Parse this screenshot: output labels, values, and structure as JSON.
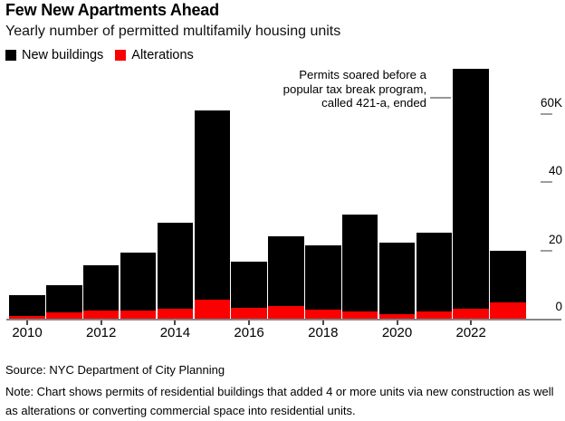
{
  "header": {
    "title": "Few New Apartments Ahead",
    "subtitle": "Yearly number of permitted multifamily housing units"
  },
  "legend": [
    {
      "label": "New buildings",
      "color": "#000000"
    },
    {
      "label": "Alterations",
      "color": "#fa0000"
    }
  ],
  "annotation": {
    "lines": [
      "Permits soared before a",
      "popular tax break program,",
      "called 421-a, ended"
    ]
  },
  "chart_data": {
    "type": "bar",
    "stacked": true,
    "title": "Few New Apartments Ahead",
    "subtitle": "Yearly number of permitted multifamily housing units",
    "categories": [
      2010,
      2011,
      2012,
      2013,
      2014,
      2015,
      2016,
      2017,
      2018,
      2019,
      2020,
      2021,
      2022,
      2023
    ],
    "series": [
      {
        "name": "New buildings",
        "color": "#000000",
        "values": [
          6300,
          7800,
          13300,
          16900,
          25200,
          55500,
          13600,
          20700,
          18800,
          28300,
          21100,
          23100,
          70200,
          15100
        ]
      },
      {
        "name": "Alterations",
        "color": "#fa0000",
        "values": [
          700,
          1900,
          2300,
          2500,
          2900,
          5700,
          3100,
          3600,
          2600,
          2200,
          1200,
          2100,
          3000,
          4800
        ]
      }
    ],
    "x_tick_labels": [
      "2010",
      "2012",
      "2014",
      "2016",
      "2018",
      "2020",
      "2022"
    ],
    "y_axis": {
      "side": "right",
      "tick_labels": [
        "60K",
        "40",
        "20",
        "0"
      ],
      "tick_values": [
        60000,
        40000,
        20000,
        0
      ],
      "range": [
        0,
        75000
      ]
    },
    "grid": false,
    "legend_position": "top-left",
    "annotation_text": "Permits soared before a popular tax break program, called 421-a, ended",
    "annotation_target_year": 2022
  },
  "footer": {
    "source": "Source: NYC Department of City Planning",
    "note": "Note: Chart shows permits of residential buildings that added 4 or more units via new construction as well as alterations or converting commercial space into residential units."
  }
}
